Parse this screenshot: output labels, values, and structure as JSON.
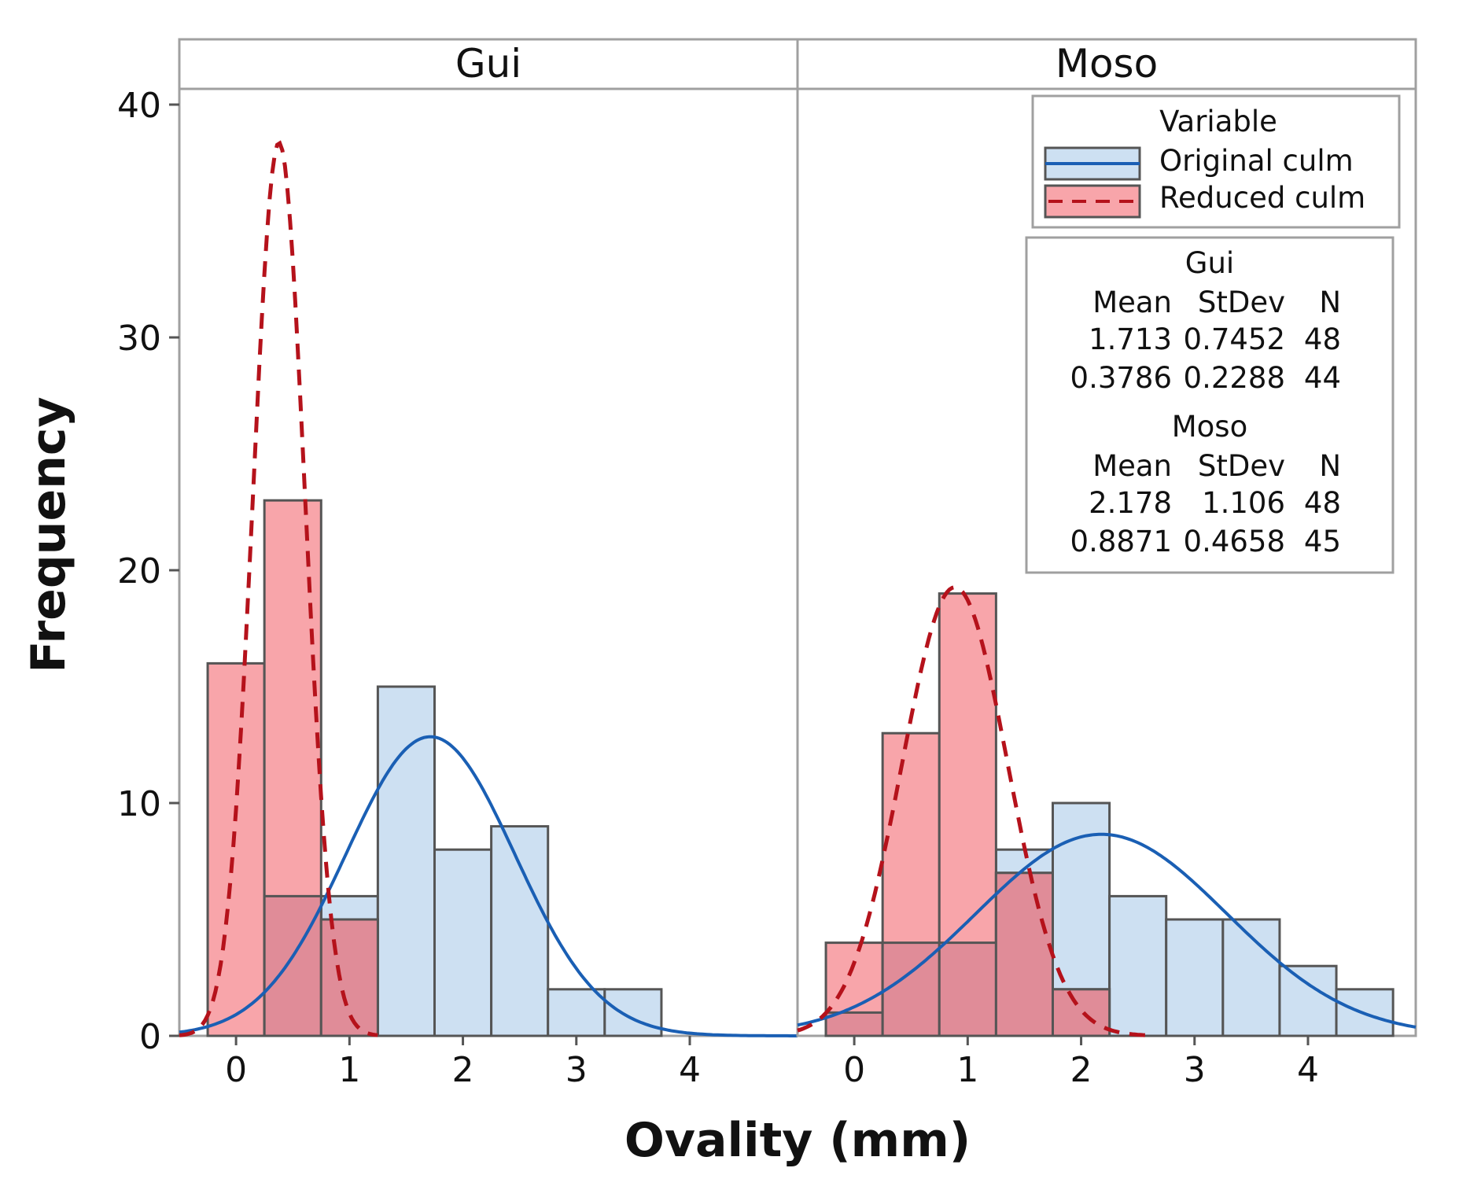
{
  "chart_data": {
    "type": "bar",
    "subtype": "paneled histogram with fitted normal curves",
    "xlabel": "Ovality (mm)",
    "ylabel": "Frequency",
    "ylim": [
      0,
      40
    ],
    "yticks": [
      0,
      10,
      20,
      30,
      40
    ],
    "xticks": [
      0,
      1,
      2,
      3,
      4
    ],
    "bin_width": 0.5,
    "legend": {
      "title": "Variable",
      "placement": "top-right",
      "entries": [
        "Original culm",
        "Reduced culm"
      ]
    },
    "colors": {
      "original_fill": "#cde0f2",
      "original_line": "#1a5fb4",
      "reduced_fill": "#f8a5aa",
      "reduced_line": "#b5121b",
      "overlap_fill": "#e08c98",
      "bar_edge": "#555555",
      "frame": "#a0a0a0"
    },
    "panels": [
      {
        "name": "Gui",
        "xlim": [
          -0.5,
          4.95
        ],
        "series": [
          {
            "name": "Original culm",
            "bin_centers": [
              0.5,
              1.0,
              1.5,
              2.0,
              2.5,
              3.0,
              3.5
            ],
            "values": [
              6,
              6,
              15,
              8,
              9,
              2,
              2
            ],
            "mean": "1.713",
            "stdev": "0.7452",
            "n": "48"
          },
          {
            "name": "Reduced culm",
            "bin_centers": [
              0.0,
              0.5,
              1.0
            ],
            "values": [
              16,
              23,
              5
            ],
            "mean": "0.3786",
            "stdev": "0.2288",
            "n": "44"
          }
        ]
      },
      {
        "name": "Moso",
        "xlim": [
          -0.5,
          4.95
        ],
        "series": [
          {
            "name": "Original culm",
            "bin_centers": [
              0.0,
              0.5,
              1.0,
              1.5,
              2.0,
              2.5,
              3.0,
              3.5,
              4.0,
              4.5
            ],
            "values": [
              1,
              4,
              4,
              8,
              10,
              6,
              5,
              5,
              3,
              2
            ],
            "mean": "2.178",
            "stdev": "1.106",
            "n": "48"
          },
          {
            "name": "Reduced culm",
            "bin_centers": [
              0.0,
              0.5,
              1.0,
              1.5,
              2.0
            ],
            "values": [
              4,
              13,
              19,
              7,
              2
            ],
            "mean": "0.8871",
            "stdev": "0.4658",
            "n": "45"
          }
        ]
      }
    ]
  },
  "stats_table": {
    "col_headers": [
      "Mean",
      "StDev",
      "N"
    ],
    "groups": [
      {
        "title": "Gui",
        "rows": [
          [
            "1.713",
            "0.7452",
            "48"
          ],
          [
            "0.3786",
            "0.2288",
            "44"
          ]
        ]
      },
      {
        "title": "Moso",
        "rows": [
          [
            "2.178",
            "1.106",
            "48"
          ],
          [
            "0.8871",
            "0.4658",
            "45"
          ]
        ]
      }
    ]
  }
}
